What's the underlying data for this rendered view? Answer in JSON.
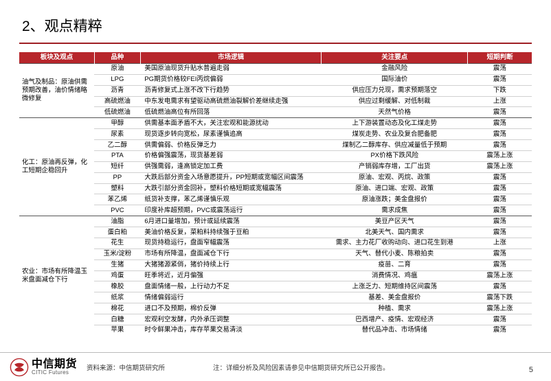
{
  "title": "2、观点精粹",
  "columns": [
    "板块及观点",
    "品种",
    "市场逻辑",
    "关注要点",
    "短期判断"
  ],
  "groups": [
    {
      "label": "油气及制品：原油供需预期改善，油价情绪略微修复",
      "rows": [
        [
          "原油",
          "美国原油现货升贴水普遍走弱",
          "金融风险",
          "震荡"
        ],
        [
          "LPG",
          "PG期货价格较FEI丙烷偏弱",
          "国际油价",
          "震荡"
        ],
        [
          "沥青",
          "沥青修复式上涨不改下行趋势",
          "供应压力兑现，需求预期落空",
          "下跌"
        ],
        [
          "高硫燃油",
          "中东发电需求有望驱动高硫燃油裂解价差继续走强",
          "供应过剩缓解、对低制裁",
          "上涨"
        ],
        [
          "低硫燃油",
          "低硫燃油高位有所回落",
          "天然气价格",
          "震荡"
        ]
      ]
    },
    {
      "label": "化工：原油再反弹，化工短期企稳回升",
      "rows": [
        [
          "甲醇",
          "供需基本面矛盾不大，关注宏观和能源扰动",
          "上下游装置动态及化工煤走势",
          "震荡"
        ],
        [
          "尿素",
          "现货逐步转向宽松，尿素谨慎追高",
          "煤炭走势、农业及复合肥备肥",
          "震荡"
        ],
        [
          "乙二醇",
          "供需偏弱、价格反弹乏力",
          "煤制乙二醇库存、供应减量低于预期",
          "震荡"
        ],
        [
          "PTA",
          "价格偏强震荡，现货基差弱",
          "PX价格下跌风险",
          "震荡上涨"
        ],
        [
          "短纤",
          "供强需弱，逢高锁定加工费",
          "产销弱库存增，工厂出货",
          "震荡上涨"
        ],
        [
          "PP",
          "大跌后部分资金入场意愿提升，PP短期或宽幅区间震荡",
          "原油、宏观、丙烷、政策",
          "震荡"
        ],
        [
          "塑料",
          "大跌引部分资金回补，塑料价格短期或宽幅震荡",
          "原油、进口端、宏观、政策",
          "震荡"
        ],
        [
          "苯乙烯",
          "纸货补支撑，苯乙烯谨慎乐观",
          "原油涨跌；美金盘报价",
          "震荡"
        ],
        [
          "PVC",
          "印度补库超预期，PVC或震荡运行",
          "需求成焦",
          "震荡"
        ]
      ]
    },
    {
      "label": "农业：市场有所降温玉米盘面减仓下行",
      "rows": [
        [
          "油脂",
          "6月进口量增加，预计或延续震荡",
          "美豆产区天气",
          "震荡"
        ],
        [
          "蛋白粕",
          "美油价格反复，菜粕料持续强于豆粕",
          "北美天气、国内需求",
          "震荡"
        ],
        [
          "花生",
          "现货持稳运行，盘面窄幅震荡",
          "需求、主力花厂收购动向、进口花生到港",
          "上涨"
        ],
        [
          "玉米/淀粉",
          "市场有所降温，盘面减仓下行",
          "天气、替代小麦、陈粮拍卖",
          "震荡"
        ],
        [
          "生猪",
          "大猪猪源紧俏，猪价持续上行",
          "疫苗、二育",
          "震荡"
        ],
        [
          "鸡蛋",
          "旺季将近，近月偏强",
          "消费情况、鸡瘟",
          "震荡上涨"
        ],
        [
          "橡胶",
          "盘面情绪一般，上行动力不足",
          "上涨乏力、短期维持区间震荡",
          "震荡"
        ],
        [
          "纸浆",
          "情绪偏弱运行",
          "基差、美金盘报价",
          "震荡下跌"
        ],
        [
          "棉花",
          "进口不及预期，棉价反弹",
          "种植、需求",
          "震荡上涨"
        ],
        [
          "白糖",
          "宏观利空发酵，内外承压调整",
          "巴西增产、疫情、宏观经济",
          "震荡"
        ],
        [
          "苹果",
          "时令鲜果冲击，库存苹果交易清淡",
          "替代品冲击、市场情绪",
          "震荡"
        ]
      ]
    }
  ],
  "footer": {
    "logo_zh": "中信期货",
    "logo_en": "CITIC Futures",
    "source": "资料来源：中信期货研究所",
    "note": "注：详细分析及风险因素请参见中信期货研究所已公开报告。",
    "page": "5"
  },
  "colors": {
    "accent": "#b7262b",
    "underline": "#9f1e23"
  }
}
